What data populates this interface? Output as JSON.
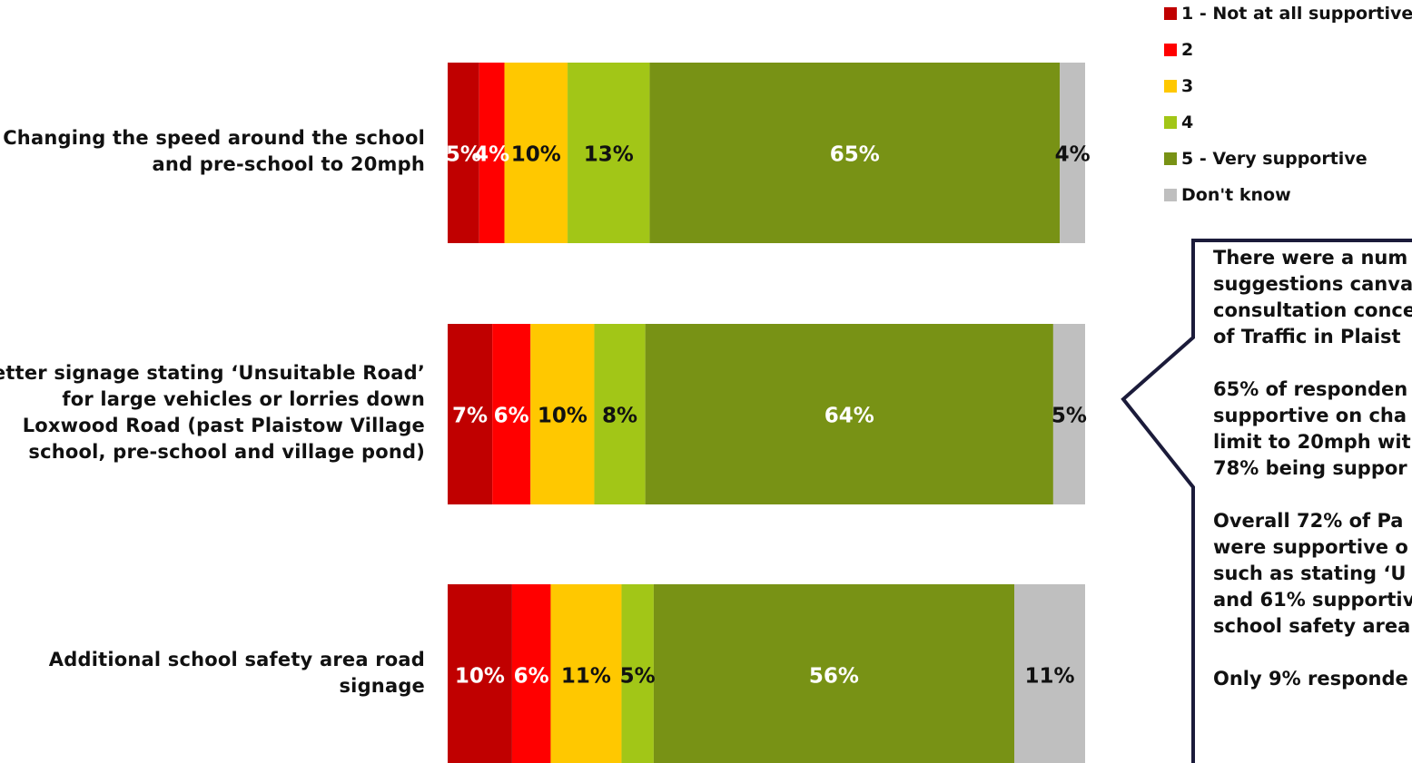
{
  "chart_data": {
    "type": "bar",
    "orientation": "horizontal",
    "stacked": true,
    "percent": true,
    "categories": [
      "Changing the speed around the school and pre-school to 20mph",
      "Better signage stating ‘Unsuitable Road’ for large vehicles or lorries down Loxwood Road (past Plaistow Village school, pre-school and village pond)",
      "Additional school safety area road signage"
    ],
    "category_lines": [
      [
        "Changing the speed around the school",
        "and pre-school to 20mph"
      ],
      [
        "Better signage stating ‘Unsuitable Road’",
        "for large vehicles or lorries down",
        "Loxwood Road (past Plaistow Village",
        "school, pre-school and village pond)"
      ],
      [
        "Additional school safety area road",
        "signage"
      ]
    ],
    "series": [
      {
        "name": "1 - Not at all supportive",
        "color": "#C00000",
        "values": [
          5,
          7,
          10
        ],
        "labels": [
          "5%",
          "7%",
          "10%"
        ],
        "label_color": "#ffffff"
      },
      {
        "name": "2",
        "color": "#FF0000",
        "values": [
          4,
          6,
          6
        ],
        "labels": [
          "4%",
          "6%",
          "6%"
        ],
        "label_color": "#ffffff"
      },
      {
        "name": "3",
        "color": "#FFC800",
        "values": [
          10,
          10,
          11
        ],
        "labels": [
          "10%",
          "10%",
          "11%"
        ],
        "label_color": "#111111"
      },
      {
        "name": "4",
        "color": "#A2C617",
        "values": [
          13,
          8,
          5
        ],
        "labels": [
          "13%",
          "8%",
          "5%"
        ],
        "label_color": "#111111"
      },
      {
        "name": "5 - Very supportive",
        "color": "#789215",
        "values": [
          65,
          64,
          56
        ],
        "labels": [
          "65%",
          "64%",
          "56%"
        ],
        "label_color": "#ffffff"
      },
      {
        "name": "Don't know",
        "color": "#BFBFBF",
        "values": [
          4,
          5,
          11
        ],
        "labels": [
          "4%",
          "5%",
          "11%"
        ],
        "label_color": "#111111"
      }
    ],
    "xlim": [
      0,
      100
    ],
    "grid": false,
    "legend_position": "top-right"
  },
  "callout": {
    "lines": [
      [
        "There were a num",
        "suggestions canva",
        "consultation conce",
        "of Traffic in Plaist"
      ],
      [
        "65% of responden",
        "supportive on cha",
        "limit to 20mph wit",
        "78% being suppor"
      ],
      [
        "Overall 72% of Pa",
        "were supportive o",
        "such as stating ‘U",
        "and 61% supportiv",
        "school safety area"
      ],
      [
        "Only 9% responde"
      ]
    ]
  }
}
